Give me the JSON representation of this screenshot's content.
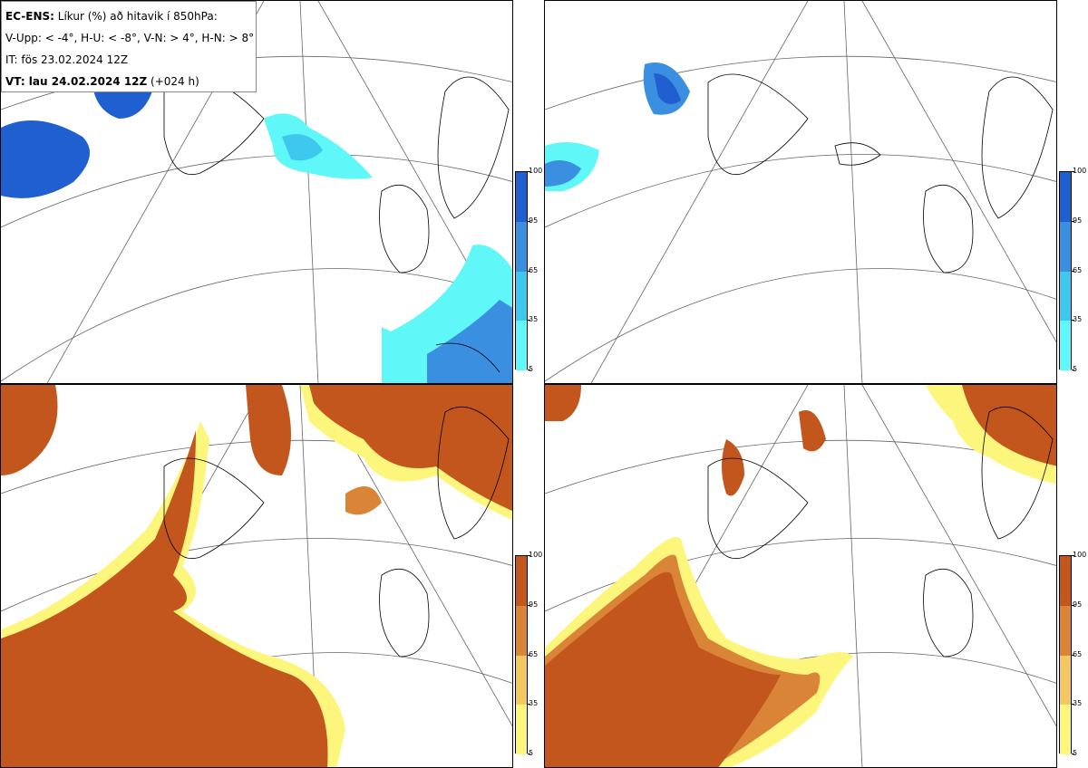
{
  "info": {
    "line1_bold": "EC-ENS:",
    "line1_rest": " Líkur (%) að hitavik í 850hPa:",
    "line2": "V-Upp: < -4°, H-U: < -8°, V-N: > 4°, H-N: > 8°",
    "line3": "IT: fös 23.02.2024 12Z",
    "line4_bold": "VT: lau 24.02.2024 12Z",
    "line4_rest": " (+024 h)"
  },
  "legend_cold": {
    "colors": [
      "#5ff7f7",
      "#3fc8ee",
      "#3a8fe0",
      "#1f5fcf"
    ],
    "ticks": [
      "100",
      "95",
      "65",
      "35",
      "5"
    ]
  },
  "legend_warm": {
    "colors": [
      "#fdf67c",
      "#f4c860",
      "#d98436",
      "#c2561d"
    ],
    "ticks": [
      "100",
      "95",
      "65",
      "35",
      "5"
    ]
  },
  "panels": [
    {
      "id": "V-Upp",
      "palette": "cold"
    },
    {
      "id": "H-U",
      "palette": "cold"
    },
    {
      "id": "V-N",
      "palette": "warm"
    },
    {
      "id": "H-N",
      "palette": "warm"
    }
  ]
}
